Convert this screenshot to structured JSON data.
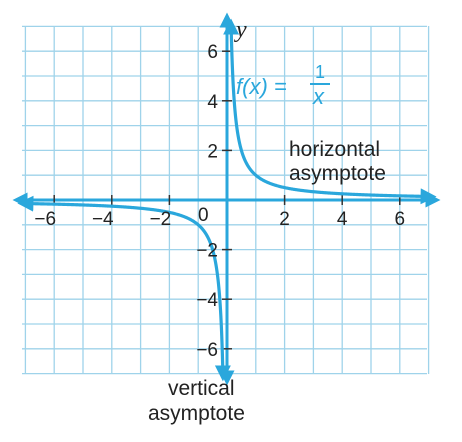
{
  "chart_data": {
    "type": "line",
    "title": "",
    "xlabel": "",
    "ylabel": "y",
    "xlim": [
      -7,
      7
    ],
    "ylim": [
      -7,
      7
    ],
    "grid": true,
    "x_ticks": [
      {
        "value": -6,
        "label": "−6"
      },
      {
        "value": -4,
        "label": "−4"
      },
      {
        "value": -2,
        "label": "−2"
      },
      {
        "value": 2,
        "label": "2"
      },
      {
        "value": 4,
        "label": "4"
      },
      {
        "value": 6,
        "label": "6"
      }
    ],
    "y_ticks": [
      {
        "value": 6,
        "label": "6"
      },
      {
        "value": 4,
        "label": "4"
      },
      {
        "value": 2,
        "label": "2"
      },
      {
        "value": -2,
        "label": "−2"
      },
      {
        "value": -4,
        "label": "−4"
      },
      {
        "value": -6,
        "label": "−6"
      }
    ],
    "origin_label": "0",
    "series": [
      {
        "name": "f(x) = 1/x",
        "function": "1/x",
        "color": "#2aa7dc",
        "branches": [
          {
            "x_start": 0.143,
            "x_end": 7
          },
          {
            "x_start": -7,
            "x_end": -0.143
          }
        ]
      }
    ],
    "function_label": {
      "lhs": "f(x) =",
      "numerator": "1",
      "denominator": "x"
    },
    "annotations": {
      "horizontal": [
        "horizontal",
        "asymptote"
      ],
      "vertical": [
        "vertical",
        "asymptote"
      ]
    },
    "colors": {
      "curve": "#2aa7dc",
      "grid": "#9fd3ea",
      "axis": "#2aa7dc",
      "text": "#222222"
    }
  }
}
